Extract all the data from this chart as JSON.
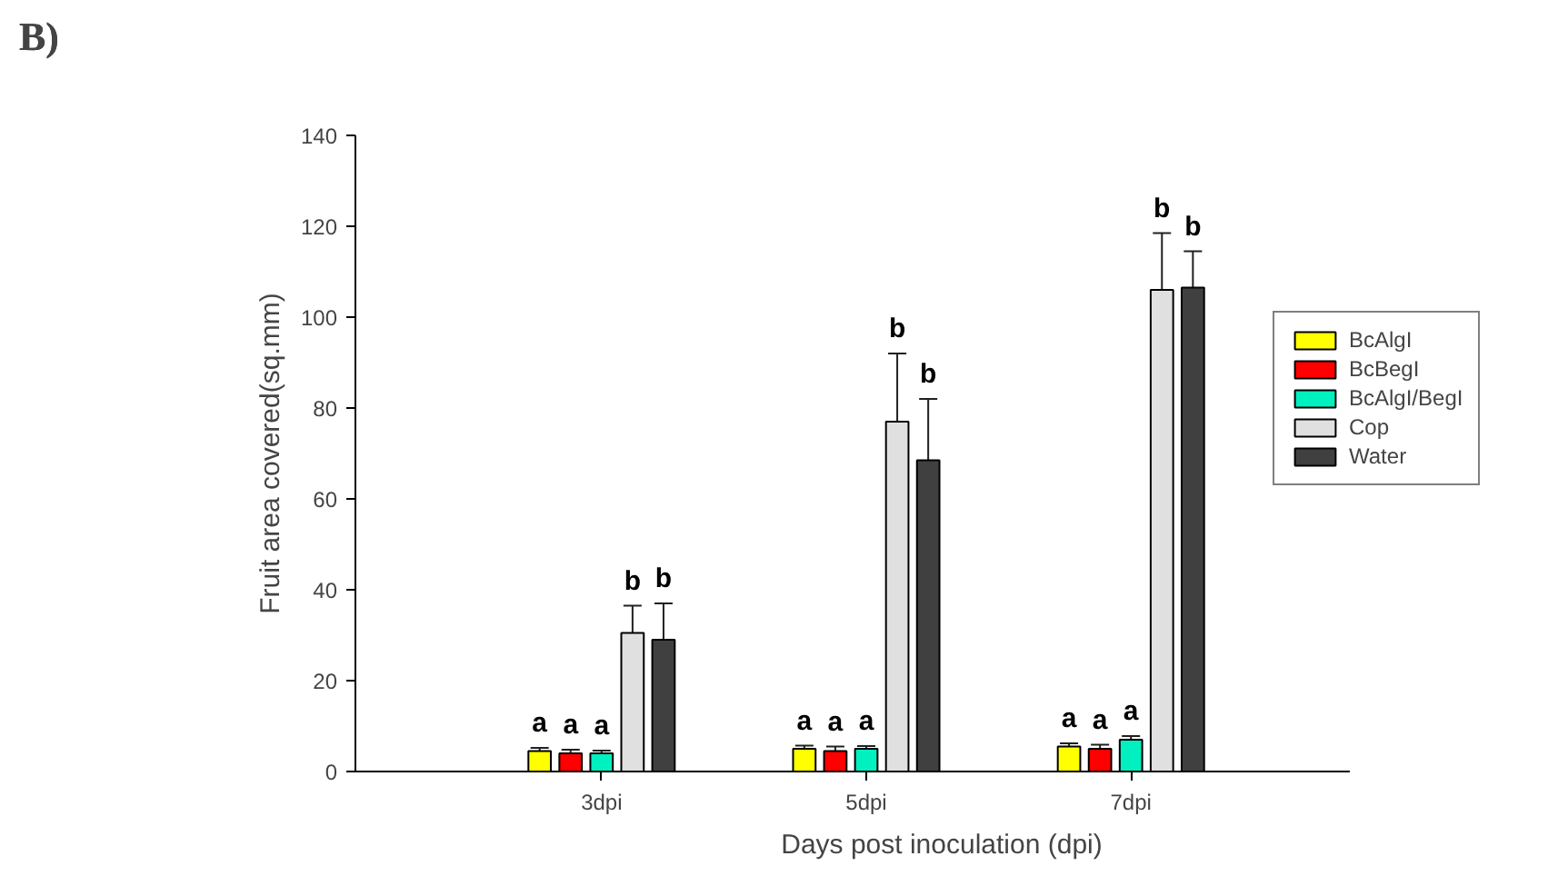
{
  "chart_data": {
    "type": "bar",
    "title": "B)",
    "xlabel": "Days post inoculation (dpi)",
    "ylabel": "Fruit area covered(sq.mm)",
    "categories": [
      "3dpi",
      "5dpi",
      "7dpi"
    ],
    "series": [
      {
        "name": "BcAlgI",
        "color": "#ffff00",
        "values": [
          4.5,
          5,
          5.5
        ],
        "errors": [
          0.7,
          0.7,
          0.7
        ]
      },
      {
        "name": "BcBegI",
        "color": "#ff0000",
        "values": [
          4,
          4.5,
          5
        ],
        "errors": [
          0.8,
          1,
          0.9
        ]
      },
      {
        "name": "BcAlgI/BegI",
        "color": "#00f0c0",
        "values": [
          4,
          5,
          7
        ],
        "errors": [
          0.6,
          0.6,
          0.8
        ]
      },
      {
        "name": "Cop",
        "color": "#e0e0e0",
        "values": [
          30.5,
          77,
          106
        ],
        "errors": [
          6,
          15,
          12.5
        ]
      },
      {
        "name": "Water",
        "color": "#404040",
        "values": [
          29,
          68.5,
          106.5
        ],
        "errors": [
          8,
          13.5,
          8
        ]
      }
    ],
    "annotations": [
      "a",
      "a",
      "a",
      "b",
      "b",
      "a",
      "a",
      "a",
      "b",
      "b",
      "a",
      "a",
      "a",
      "b",
      "b"
    ],
    "ylim": [
      0,
      140
    ],
    "yticks": [
      0,
      20,
      40,
      60,
      80,
      100,
      120,
      140
    ],
    "grid": false,
    "legend": "right"
  }
}
